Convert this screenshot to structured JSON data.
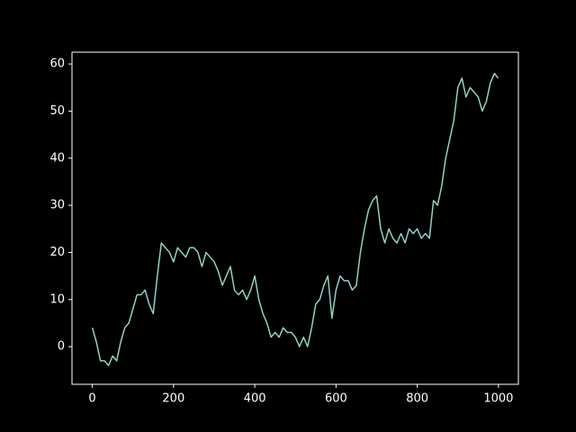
{
  "chart_data": {
    "type": "line",
    "x": [
      0,
      10,
      20,
      30,
      40,
      50,
      60,
      70,
      80,
      90,
      100,
      110,
      120,
      130,
      140,
      150,
      160,
      170,
      180,
      190,
      200,
      210,
      220,
      230,
      240,
      250,
      260,
      270,
      280,
      290,
      300,
      310,
      320,
      330,
      340,
      350,
      360,
      370,
      380,
      390,
      400,
      410,
      420,
      430,
      440,
      450,
      460,
      470,
      480,
      490,
      500,
      510,
      520,
      530,
      540,
      550,
      560,
      570,
      580,
      590,
      600,
      610,
      620,
      630,
      640,
      650,
      660,
      670,
      680,
      690,
      700,
      710,
      720,
      730,
      740,
      750,
      760,
      770,
      780,
      790,
      800,
      810,
      820,
      830,
      840,
      850,
      860,
      870,
      880,
      890,
      900,
      910,
      920,
      930,
      940,
      950,
      960,
      970,
      980,
      990,
      999
    ],
    "series": [
      {
        "color": "#8dd3c7",
        "values": [
          4,
          1,
          -3,
          -3,
          -4,
          -2,
          -3,
          1,
          4,
          5,
          8,
          11,
          11,
          12,
          9,
          7,
          15,
          22,
          21,
          20,
          18,
          21,
          20,
          19,
          21,
          21,
          20,
          17,
          20,
          19,
          18,
          16,
          13,
          15,
          17,
          12,
          11,
          12,
          10,
          12,
          15,
          10,
          7,
          5,
          2,
          3,
          2,
          4,
          3,
          3,
          2,
          0,
          2,
          0,
          4,
          9,
          10,
          13,
          15,
          6,
          12,
          15,
          14,
          14,
          12,
          13,
          20,
          25,
          29,
          31,
          32,
          25,
          22,
          25,
          23,
          22,
          24,
          22,
          25,
          24,
          25,
          23,
          24,
          23,
          31,
          30,
          34,
          40,
          44,
          48,
          55,
          57,
          53,
          55,
          54,
          53,
          50,
          52,
          56,
          58,
          57
        ]
      }
    ],
    "xlim": [
      -50,
      1049
    ],
    "ylim": [
      -8,
      62.5
    ],
    "xticks": [
      0,
      200,
      400,
      600,
      800,
      1000
    ],
    "yticks": [
      0,
      10,
      20,
      30,
      40,
      50,
      60
    ]
  }
}
